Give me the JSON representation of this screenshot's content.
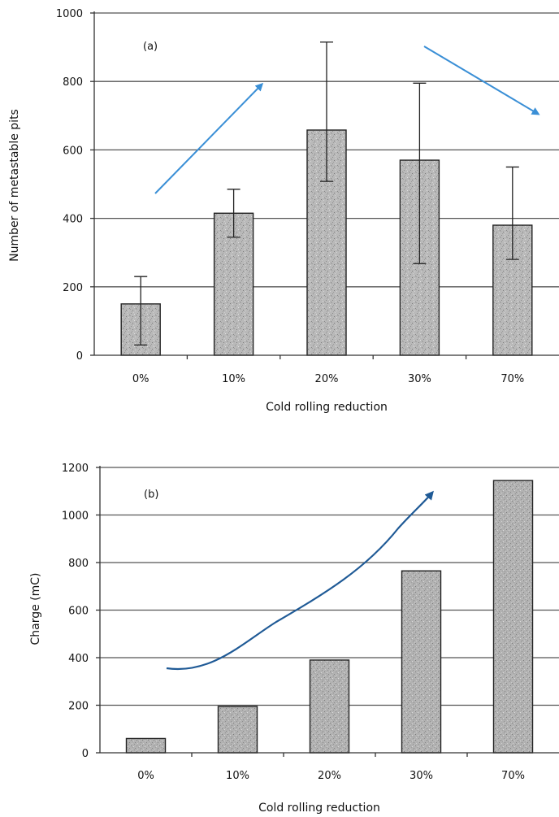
{
  "chart_data": [
    {
      "type": "bar",
      "panel_label": "(a)",
      "categories": [
        "0%",
        "10%",
        "20%",
        "30%",
        "70%"
      ],
      "values": [
        150,
        415,
        658,
        570,
        380
      ],
      "error_low": [
        30,
        345,
        508,
        268,
        280
      ],
      "error_high": [
        230,
        485,
        915,
        795,
        550
      ],
      "xlabel": "Cold rolling reduction",
      "ylabel": "Number of metastable pits",
      "ylim": [
        0,
        1000
      ],
      "yticks": [
        0,
        200,
        400,
        600,
        800,
        1000
      ],
      "grid": true,
      "annotations": [
        "arrow-up-trend",
        "arrow-down-trend"
      ],
      "arrow_color": "#3a8fd6"
    },
    {
      "type": "bar",
      "panel_label": "(b)",
      "categories": [
        "0%",
        "10%",
        "20%",
        "30%",
        "70%"
      ],
      "values": [
        60,
        195,
        390,
        765,
        1145
      ],
      "xlabel": "Cold rolling reduction",
      "ylabel": "Charge (mC)",
      "ylim": [
        0,
        1200
      ],
      "yticks": [
        0,
        200,
        400,
        600,
        800,
        1000,
        1200
      ],
      "grid": true,
      "annotations": [
        "curved-arrow-up-trend"
      ],
      "arrow_color": "#1f5a96"
    }
  ]
}
